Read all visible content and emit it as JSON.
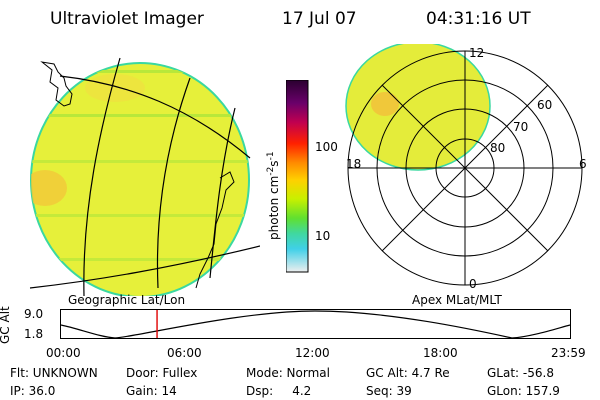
{
  "header": {
    "title": "Ultraviolet Imager",
    "date": "17 Jul 07",
    "time": "04:31:16 UT"
  },
  "map": {
    "caption": "Geographic Lat/Lon"
  },
  "colorbar": {
    "label": "photon cm",
    "exp1": "-2",
    "label_s": "s",
    "exp2": "-1",
    "ticks": [
      "100",
      "10"
    ],
    "scale": "log"
  },
  "polar": {
    "caption": "Apex MLat/MLT",
    "lat_labels": [
      "60",
      "70",
      "80"
    ],
    "mlt_labels": {
      "top": "12",
      "left": "18",
      "right": "6",
      "bottom": "0"
    }
  },
  "orbit": {
    "ylabel": "GC Alt",
    "ymax": "9.0",
    "ymin": "1.8",
    "xticks": [
      "00:00",
      "06:00",
      "12:00",
      "18:00",
      "23:59"
    ],
    "marker_time_hours": 4.52,
    "curve_color": "#000000",
    "marker_color": "#e00000"
  },
  "status": {
    "row1": [
      {
        "label": "Flt: UNKNOWN"
      },
      {
        "label": "Door: Fullex"
      },
      {
        "label": "Mode: Normal"
      },
      {
        "label": "GC Alt: 4.7 Re"
      },
      {
        "label": "GLat: -56.8"
      }
    ],
    "row2": [
      {
        "label": "IP: 36.0"
      },
      {
        "label": "Gain: 14"
      },
      {
        "label": "Dsp:     4.2"
      },
      {
        "label": "Seq: 39"
      },
      {
        "label": "GLon: 157.9"
      }
    ]
  }
}
